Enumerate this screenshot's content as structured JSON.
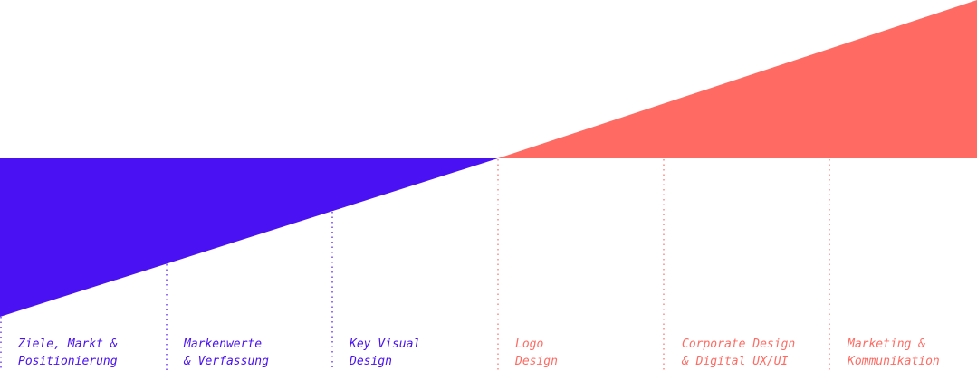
{
  "colors": {
    "primary": "#4a12f2",
    "accent": "#ff6b63",
    "background": "#ffffff"
  },
  "stages": [
    {
      "line1": "Ziele, Markt &",
      "line2": "Positionierung",
      "group": "left"
    },
    {
      "line1": "Markenwerte",
      "line2": "& Verfassung",
      "group": "left"
    },
    {
      "line1": "Key Visual",
      "line2": "Design",
      "group": "left"
    },
    {
      "line1": "Logo",
      "line2": "Design",
      "group": "right"
    },
    {
      "line1": "Corporate Design",
      "line2": "& Digital UX/UI",
      "group": "right"
    },
    {
      "line1": "Marketing &",
      "line2": "Kommunikation",
      "group": "right"
    }
  ]
}
